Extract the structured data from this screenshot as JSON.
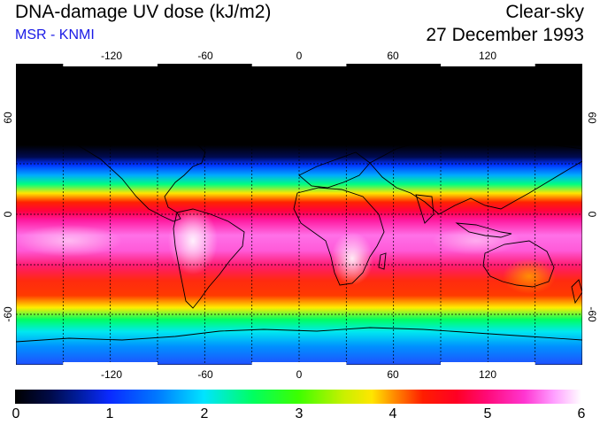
{
  "header": {
    "title": "DNA-damage UV dose (kJ/m2)",
    "source": "MSR - KNMI",
    "sky_condition": "Clear-sky",
    "date": "27 December 1993"
  },
  "map": {
    "longitude_ticks": [
      "-120",
      "-60",
      "0",
      "60",
      "120"
    ],
    "latitude_ticks_left": [
      "60",
      "0",
      "-60"
    ],
    "latitude_ticks_right": [
      "60",
      "0",
      "-60"
    ]
  },
  "colorbar": {
    "ticks": [
      "0",
      "1",
      "2",
      "3",
      "4",
      "5",
      "6"
    ],
    "min": 0,
    "max": 6
  },
  "colors": {
    "source_text": "#1a1ae6",
    "coast": "#000000"
  }
}
